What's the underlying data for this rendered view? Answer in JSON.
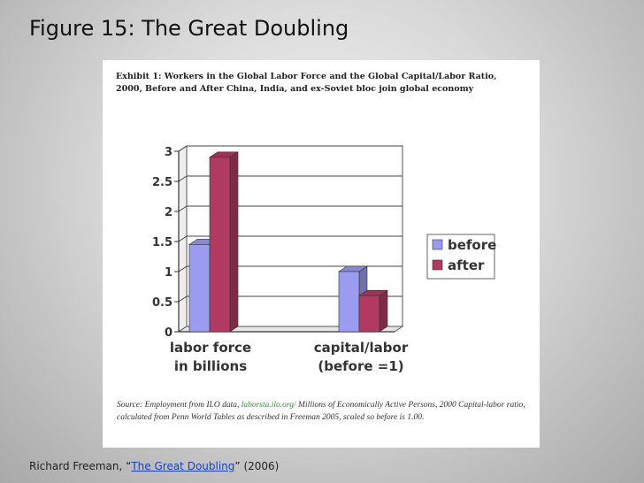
{
  "slide": {
    "title": "Figure 15: The Great Doubling"
  },
  "exhibit": {
    "title": "Exhibit 1:  Workers in the Global Labor Force and the Global Capital/Labor Ratio, 2000, Before and After China, India, and ex-Soviet bloc join global economy",
    "source_prefix": "Source: Employment from ILO data, ",
    "source_link": "laborsta.ilo.org/",
    "source_suffix": "  Millions of Economically Active Persons, 2000 Capital-labor ratio, calculated from Penn World Tables as described in Freeman 2005, scaled so before is 1.00."
  },
  "chart_data": {
    "type": "bar",
    "title": "",
    "categories": [
      "labor force in billions",
      "capital/labor (before =1)"
    ],
    "category_lines": [
      [
        "labor force",
        "in billions"
      ],
      [
        "capital/labor",
        "(before =1)"
      ]
    ],
    "series": [
      {
        "name": "before",
        "values": [
          1.45,
          1.0
        ],
        "color": "#9b9bf0"
      },
      {
        "name": "after",
        "values": [
          2.9,
          0.6
        ],
        "color": "#b03a62"
      }
    ],
    "ylim": [
      0,
      3
    ],
    "yticks": [
      "0",
      "0.5",
      "1",
      "1.5",
      "2",
      "2.5",
      "3"
    ],
    "grid": true,
    "legend": "right",
    "style": "3d"
  },
  "attribution": {
    "prefix": "Richard Freeman, “",
    "link_text": "The Great Doubling",
    "suffix": "” (2006)"
  }
}
